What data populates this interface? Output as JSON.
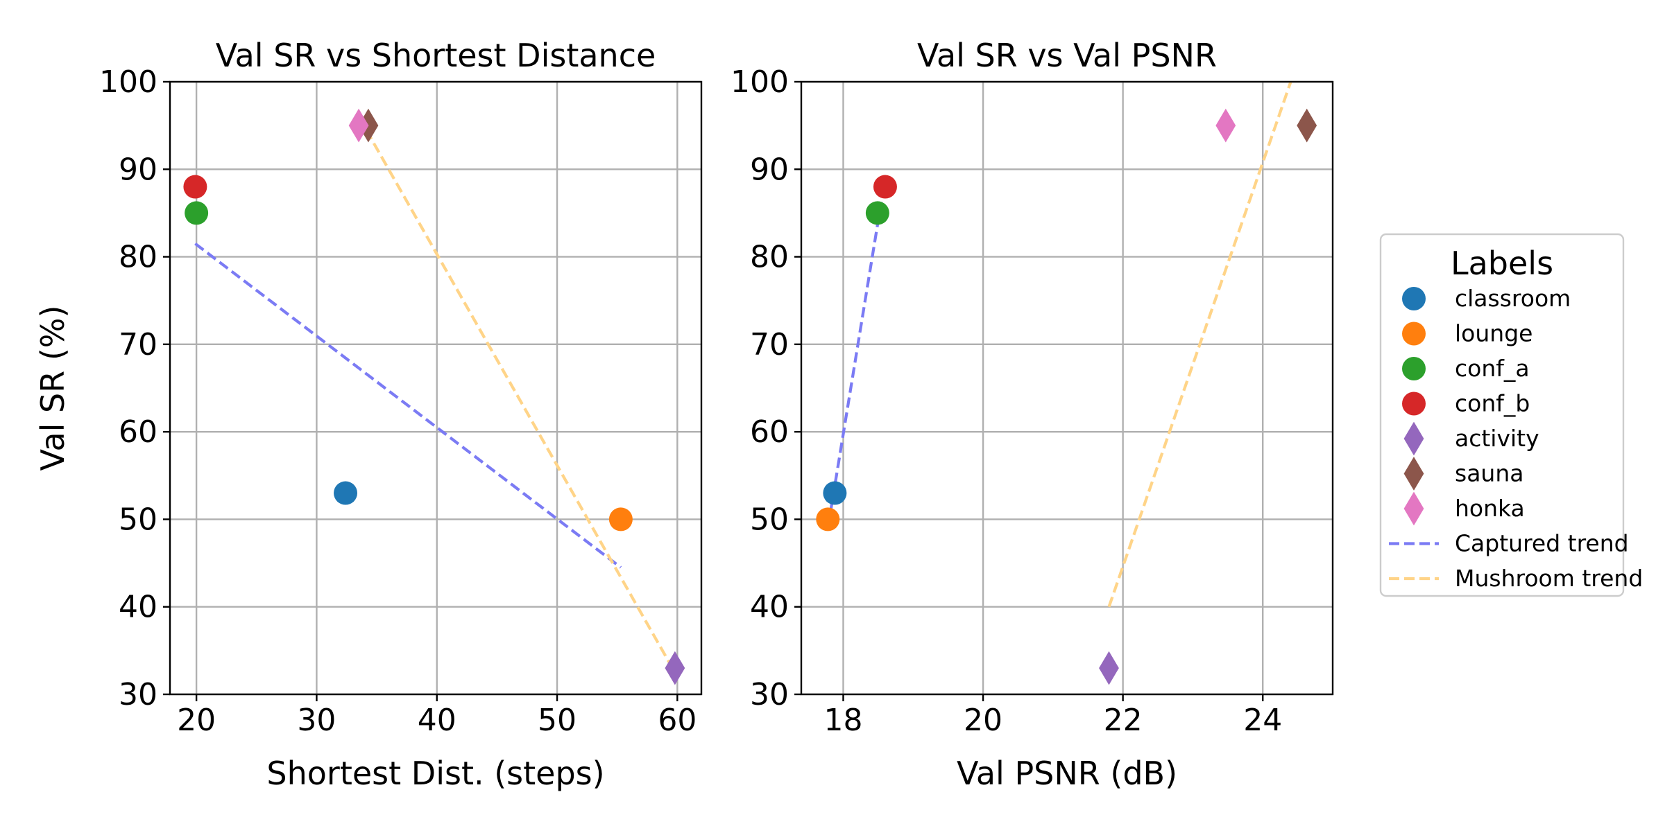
{
  "chart_data": [
    {
      "type": "scatter",
      "title": "Val SR vs Shortest Distance",
      "xlabel": "Shortest Dist. (steps)",
      "ylabel": "Val SR (%)",
      "xlim": [
        17.8,
        62.0
      ],
      "ylim": [
        30,
        100
      ],
      "xticks": [
        "20",
        "30",
        "40",
        "50",
        "60"
      ],
      "xtick_values": [
        20,
        30,
        40,
        50,
        60
      ],
      "yticks": [
        "30",
        "40",
        "50",
        "60",
        "70",
        "80",
        "90",
        "100"
      ],
      "ytick_values": [
        30,
        40,
        50,
        60,
        70,
        80,
        90,
        100
      ],
      "grid": true,
      "points": [
        {
          "label": "classroom",
          "x": 32.4,
          "y": 53
        },
        {
          "label": "lounge",
          "x": 55.3,
          "y": 50
        },
        {
          "label": "conf_a",
          "x": 20.0,
          "y": 85
        },
        {
          "label": "conf_b",
          "x": 19.9,
          "y": 88
        },
        {
          "label": "activity",
          "x": 59.8,
          "y": 33
        },
        {
          "label": "sauna",
          "x": 34.3,
          "y": 95
        },
        {
          "label": "honka",
          "x": 33.5,
          "y": 95
        }
      ],
      "trends": [
        {
          "name": "Captured trend",
          "x": [
            19.9,
            55.3
          ],
          "y": [
            81.5,
            44.5
          ]
        },
        {
          "name": "Mushroom trend",
          "x": [
            33.5,
            59.8
          ],
          "y": [
            96.0,
            32.5
          ]
        }
      ]
    },
    {
      "type": "scatter",
      "title": "Val SR vs Val PSNR",
      "xlabel": "Val PSNR (dB)",
      "ylabel": "",
      "xlim": [
        17.4,
        25.0
      ],
      "ylim": [
        30,
        100
      ],
      "xticks": [
        "18",
        "20",
        "22",
        "24"
      ],
      "xtick_values": [
        18,
        20,
        22,
        24
      ],
      "yticks": [
        "30",
        "40",
        "50",
        "60",
        "70",
        "80",
        "90",
        "100"
      ],
      "ytick_values": [
        30,
        40,
        50,
        60,
        70,
        80,
        90,
        100
      ],
      "grid": true,
      "points": [
        {
          "label": "classroom",
          "x": 17.88,
          "y": 53
        },
        {
          "label": "lounge",
          "x": 17.78,
          "y": 50
        },
        {
          "label": "conf_a",
          "x": 18.49,
          "y": 85
        },
        {
          "label": "conf_b",
          "x": 18.6,
          "y": 88
        },
        {
          "label": "activity",
          "x": 21.8,
          "y": 33
        },
        {
          "label": "sauna",
          "x": 24.63,
          "y": 95
        },
        {
          "label": "honka",
          "x": 23.47,
          "y": 95
        }
      ],
      "trends": [
        {
          "name": "Captured trend",
          "x": [
            17.78,
            18.6
          ],
          "y": [
            49.0,
            89.0
          ]
        },
        {
          "name": "Mushroom trend",
          "x": [
            21.8,
            24.4
          ],
          "y": [
            40.0,
            100.0
          ]
        }
      ]
    }
  ],
  "legend": {
    "title": "Labels",
    "placement": "right-center",
    "entries": [
      {
        "label": "classroom",
        "marker": "circle",
        "color": "#1f77b4"
      },
      {
        "label": "lounge",
        "marker": "circle",
        "color": "#ff7f0e"
      },
      {
        "label": "conf_a",
        "marker": "circle",
        "color": "#2ca02c"
      },
      {
        "label": "conf_b",
        "marker": "circle",
        "color": "#d62728"
      },
      {
        "label": "activity",
        "marker": "diamond",
        "color": "#9467bd"
      },
      {
        "label": "sauna",
        "marker": "diamond",
        "color": "#8c564b"
      },
      {
        "label": "honka",
        "marker": "diamond",
        "color": "#e377c2"
      },
      {
        "label": "Captured trend",
        "marker": "dashed-line",
        "color": "#7b7bf4"
      },
      {
        "label": "Mushroom trend",
        "marker": "dashed-line",
        "color": "#ffd488"
      }
    ]
  }
}
